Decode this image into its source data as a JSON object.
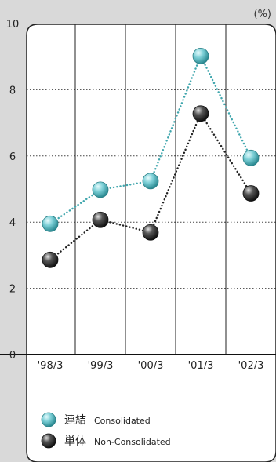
{
  "chart_data": {
    "type": "line",
    "unit": "(%)",
    "categories": [
      "'98/3",
      "'99/3",
      "'00/3",
      "'01/3",
      "'02/3"
    ],
    "ylim": [
      0,
      10
    ],
    "yticks": [
      0,
      2,
      4,
      6,
      8,
      10
    ],
    "series": [
      {
        "name_ja": "連結",
        "name_en": "Consolidated",
        "color": "#3fa6ad",
        "values": [
          3.95,
          4.98,
          5.24,
          9.02,
          5.94
        ]
      },
      {
        "name_ja": "単体",
        "name_en": "Non-Consolidated",
        "color": "#222222",
        "values": [
          2.86,
          4.07,
          3.69,
          7.28,
          4.87
        ]
      }
    ]
  }
}
